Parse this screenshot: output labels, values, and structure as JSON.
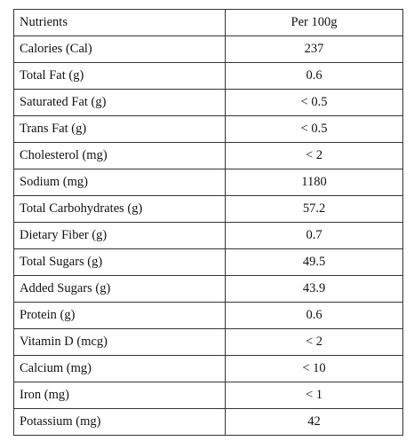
{
  "table": {
    "headers": [
      "Nutrients",
      "Per 100g"
    ],
    "rows": [
      {
        "nutrient": "Calories (Cal)",
        "value": "237"
      },
      {
        "nutrient": "Total Fat (g)",
        "value": "0.6"
      },
      {
        "nutrient": "Saturated Fat (g)",
        "value": "< 0.5"
      },
      {
        "nutrient": "Trans Fat (g)",
        "value": "< 0.5"
      },
      {
        "nutrient": "Cholesterol (mg)",
        "value": "< 2"
      },
      {
        "nutrient": "Sodium (mg)",
        "value": "1180"
      },
      {
        "nutrient": "Total Carbohydrates (g)",
        "value": "57.2"
      },
      {
        "nutrient": "Dietary Fiber (g)",
        "value": "0.7"
      },
      {
        "nutrient": "Total Sugars (g)",
        "value": "49.5"
      },
      {
        "nutrient": "Added Sugars (g)",
        "value": "43.9"
      },
      {
        "nutrient": "Protein (g)",
        "value": "0.6"
      },
      {
        "nutrient": "Vitamin D (mcg)",
        "value": "< 2"
      },
      {
        "nutrient": "Calcium (mg)",
        "value": "< 10"
      },
      {
        "nutrient": "Iron (mg)",
        "value": "< 1"
      },
      {
        "nutrient": "Potassium (mg)",
        "value": "42"
      }
    ]
  }
}
